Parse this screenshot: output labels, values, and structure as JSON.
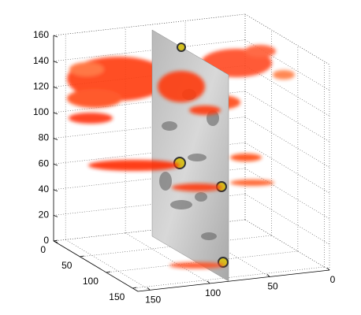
{
  "chart_data": {
    "type": "volume",
    "xlim": [
      0,
      160
    ],
    "xticks": [
      0,
      50,
      100,
      150
    ],
    "ylim": [
      0,
      160
    ],
    "yticks": [
      0,
      50,
      100,
      150
    ],
    "zlim": [
      0,
      160
    ],
    "zticks": [
      0,
      20,
      40,
      60,
      80,
      100,
      120,
      140,
      160
    ],
    "grid": true
  }
}
